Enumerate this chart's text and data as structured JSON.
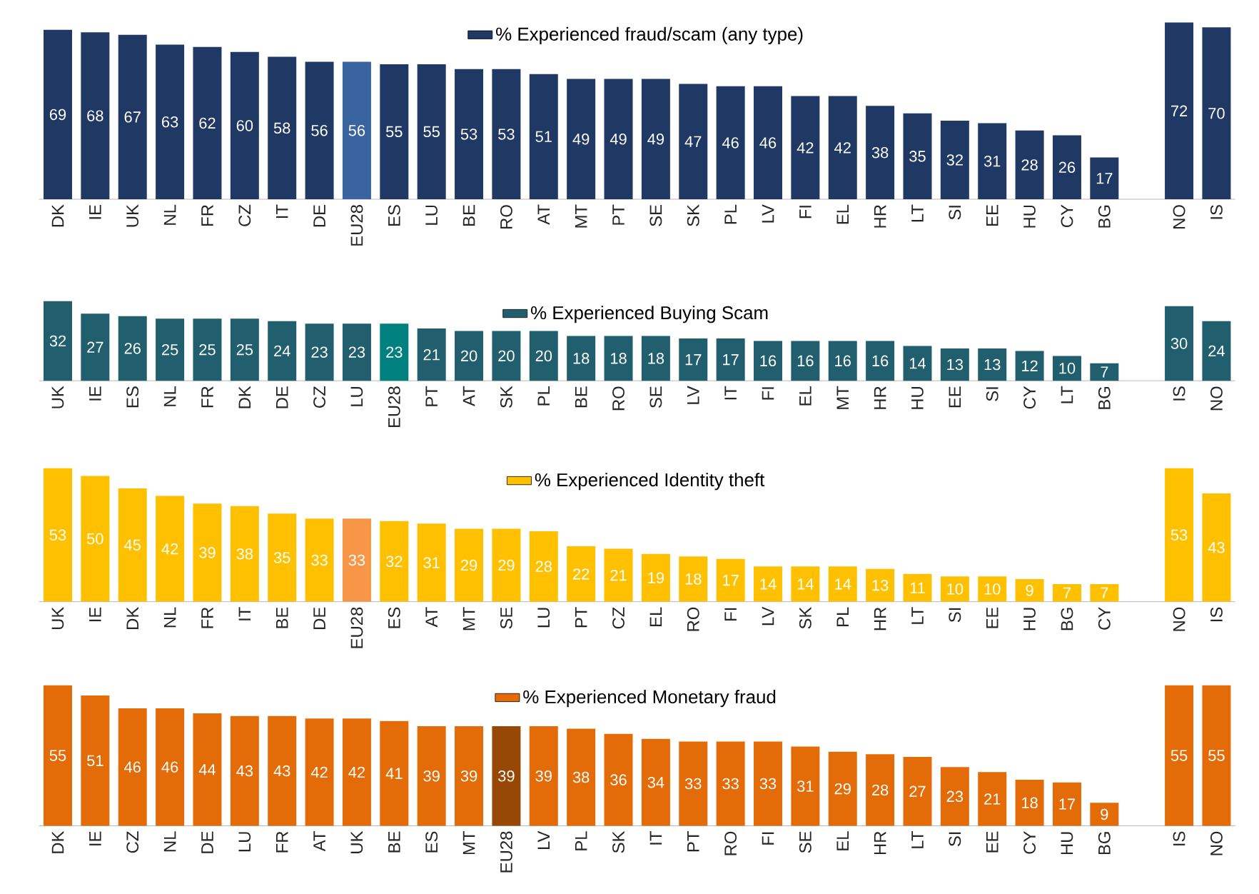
{
  "chart_data": [
    {
      "type": "bar",
      "categories": [
        "DK",
        "IE",
        "UK",
        "NL",
        "FR",
        "CZ",
        "IT",
        "DE",
        "EU28",
        "ES",
        "LU",
        "BE",
        "RO",
        "AT",
        "MT",
        "PT",
        "SE",
        "SK",
        "PL",
        "LV",
        "FI",
        "EL",
        "HR",
        "LT",
        "SI",
        "EE",
        "HU",
        "CY",
        "BG",
        null,
        "NO",
        "IS"
      ],
      "series": [
        {
          "name": "% Experienced fraud/scam (any type)",
          "values": [
            69,
            68,
            67,
            63,
            62,
            60,
            58,
            56,
            56,
            55,
            55,
            53,
            53,
            51,
            49,
            49,
            49,
            47,
            46,
            46,
            42,
            42,
            38,
            35,
            32,
            31,
            28,
            26,
            17,
            null,
            72,
            70
          ],
          "colors": [
            "#1f3864",
            "#1f3864",
            "#1f3864",
            "#1f3864",
            "#1f3864",
            "#1f3864",
            "#1f3864",
            "#1f3864",
            "#3a64a0",
            "#1f3864",
            "#1f3864",
            "#1f3864",
            "#1f3864",
            "#1f3864",
            "#1f3864",
            "#1f3864",
            "#1f3864",
            "#1f3864",
            "#1f3864",
            "#1f3864",
            "#1f3864",
            "#1f3864",
            "#1f3864",
            "#1f3864",
            "#1f3864",
            "#1f3864",
            "#1f3864",
            "#1f3864",
            "#1f3864",
            "#1f3864",
            "#1f3864",
            "#1f3864"
          ]
        }
      ],
      "data_labels": true,
      "legend": "top"
    },
    {
      "type": "bar",
      "categories": [
        "UK",
        "IE",
        "ES",
        "NL",
        "FR",
        "DK",
        "DE",
        "CZ",
        "LU",
        "EU28",
        "PT",
        "AT",
        "SK",
        "PL",
        "BE",
        "RO",
        "SE",
        "LV",
        "IT",
        "FI",
        "EL",
        "MT",
        "HR",
        "HU",
        "EE",
        "SI",
        "CY",
        "LT",
        "BG",
        null,
        "IS",
        "NO"
      ],
      "series": [
        {
          "name": "% Experienced Buying Scam",
          "values": [
            32,
            27,
            26,
            25,
            25,
            25,
            24,
            23,
            23,
            23,
            21,
            20,
            20,
            20,
            18,
            18,
            18,
            17,
            17,
            16,
            16,
            16,
            16,
            14,
            13,
            13,
            12,
            10,
            7,
            null,
            30,
            24
          ],
          "colors": [
            "#215f6e",
            "#215f6e",
            "#215f6e",
            "#215f6e",
            "#215f6e",
            "#215f6e",
            "#215f6e",
            "#215f6e",
            "#215f6e",
            "#00807f",
            "#215f6e",
            "#215f6e",
            "#215f6e",
            "#215f6e",
            "#215f6e",
            "#215f6e",
            "#215f6e",
            "#215f6e",
            "#215f6e",
            "#215f6e",
            "#215f6e",
            "#215f6e",
            "#215f6e",
            "#215f6e",
            "#215f6e",
            "#215f6e",
            "#215f6e",
            "#215f6e",
            "#215f6e",
            "#215f6e",
            "#215f6e",
            "#215f6e"
          ]
        }
      ],
      "data_labels": true,
      "legend": "top"
    },
    {
      "type": "bar",
      "categories": [
        "UK",
        "IE",
        "DK",
        "NL",
        "FR",
        "IT",
        "BE",
        "DE",
        "EU28",
        "ES",
        "AT",
        "MT",
        "SE",
        "LU",
        "PT",
        "CZ",
        "EL",
        "RO",
        "FI",
        "LV",
        "SK",
        "PL",
        "HR",
        "LT",
        "SI",
        "EE",
        "HU",
        "BG",
        "CY",
        null,
        "NO",
        "IS"
      ],
      "series": [
        {
          "name": "% Experienced Identity theft",
          "values": [
            53,
            50,
            45,
            42,
            39,
            38,
            35,
            33,
            33,
            32,
            31,
            29,
            29,
            28,
            22,
            21,
            19,
            18,
            17,
            14,
            14,
            14,
            13,
            11,
            10,
            10,
            9,
            7,
            7,
            null,
            53,
            43
          ],
          "colors": [
            "#ffc000",
            "#ffc000",
            "#ffc000",
            "#ffc000",
            "#ffc000",
            "#ffc000",
            "#ffc000",
            "#ffc000",
            "#f79646",
            "#ffc000",
            "#ffc000",
            "#ffc000",
            "#ffc000",
            "#ffc000",
            "#ffc000",
            "#ffc000",
            "#ffc000",
            "#ffc000",
            "#ffc000",
            "#ffc000",
            "#ffc000",
            "#ffc000",
            "#ffc000",
            "#ffc000",
            "#ffc000",
            "#ffc000",
            "#ffc000",
            "#ffc000",
            "#ffc000",
            "#ffc000",
            "#ffc000",
            "#ffc000"
          ]
        }
      ],
      "data_labels": true,
      "legend": "top"
    },
    {
      "type": "bar",
      "categories": [
        "DK",
        "IE",
        "CZ",
        "NL",
        "DE",
        "LU",
        "FR",
        "AT",
        "UK",
        "BE",
        "ES",
        "MT",
        "EU28",
        "LV",
        "PL",
        "SK",
        "IT",
        "PT",
        "RO",
        "FI",
        "SE",
        "EL",
        "HR",
        "LT",
        "SI",
        "EE",
        "CY",
        "HU",
        "BG",
        null,
        "IS",
        "NO"
      ],
      "series": [
        {
          "name": "% Experienced Monetary fraud",
          "values": [
            55,
            51,
            46,
            46,
            44,
            43,
            43,
            42,
            42,
            41,
            39,
            39,
            39,
            39,
            38,
            36,
            34,
            33,
            33,
            33,
            31,
            29,
            28,
            27,
            23,
            21,
            18,
            17,
            9,
            null,
            55,
            55
          ],
          "colors": [
            "#e36c09",
            "#e36c09",
            "#e36c09",
            "#e36c09",
            "#e36c09",
            "#e36c09",
            "#e36c09",
            "#e36c09",
            "#e36c09",
            "#e36c09",
            "#e36c09",
            "#e36c09",
            "#974706",
            "#e36c09",
            "#e36c09",
            "#e36c09",
            "#e36c09",
            "#e36c09",
            "#e36c09",
            "#e36c09",
            "#e36c09",
            "#e36c09",
            "#e36c09",
            "#e36c09",
            "#e36c09",
            "#e36c09",
            "#e36c09",
            "#e36c09",
            "#e36c09",
            "#e36c09",
            "#e36c09",
            "#e36c09"
          ]
        }
      ],
      "data_labels": true,
      "legend": "top"
    }
  ]
}
